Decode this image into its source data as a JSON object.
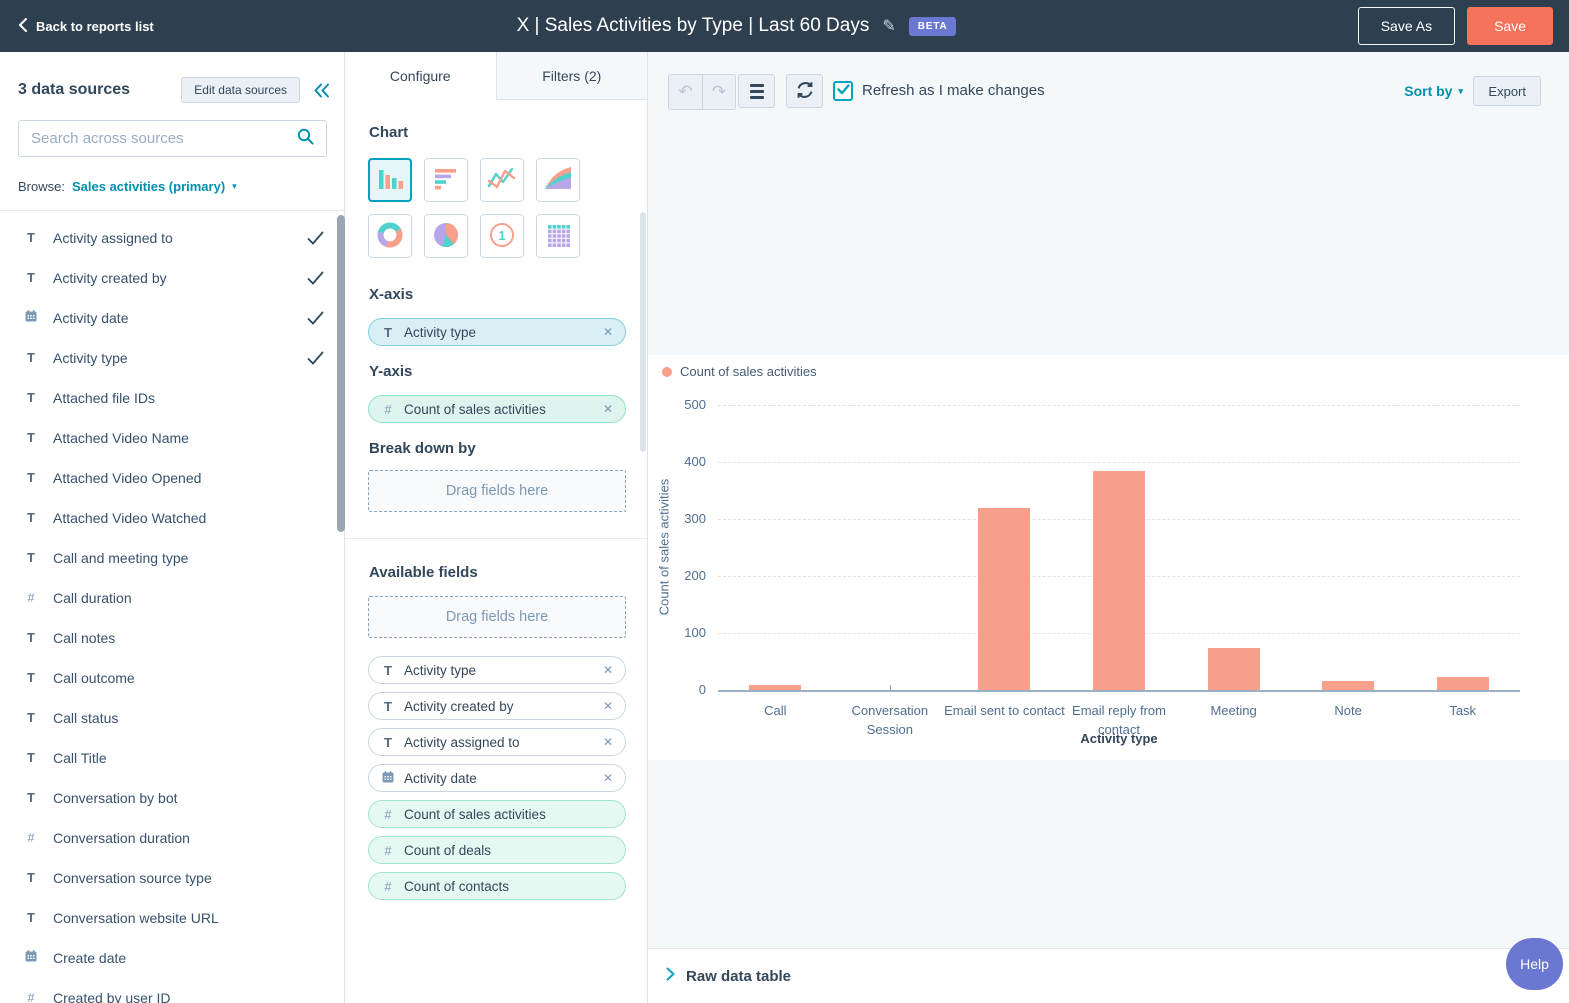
{
  "top_nav": {
    "back_label": "Back to reports list",
    "title": "X | Sales Activities by Type | Last 60 Days",
    "beta_badge": "BETA",
    "save_as_label": "Save As",
    "save_label": "Save"
  },
  "sidebar": {
    "header": "3 data sources",
    "edit_button": "Edit data sources",
    "search_placeholder": "Search across sources",
    "browse_label": "Browse:",
    "browse_value": "Sales activities (primary)",
    "fields": [
      {
        "name": "Activity assigned to",
        "type": "text",
        "checked": true
      },
      {
        "name": "Activity created by",
        "type": "text",
        "checked": true
      },
      {
        "name": "Activity date",
        "type": "date",
        "checked": true
      },
      {
        "name": "Activity type",
        "type": "text",
        "checked": true
      },
      {
        "name": "Attached file IDs",
        "type": "text",
        "checked": false
      },
      {
        "name": "Attached Video Name",
        "type": "text",
        "checked": false
      },
      {
        "name": "Attached Video Opened",
        "type": "text",
        "checked": false
      },
      {
        "name": "Attached Video Watched",
        "type": "text",
        "checked": false
      },
      {
        "name": "Call and meeting type",
        "type": "text",
        "checked": false
      },
      {
        "name": "Call duration",
        "type": "number",
        "checked": false
      },
      {
        "name": "Call notes",
        "type": "text",
        "checked": false
      },
      {
        "name": "Call outcome",
        "type": "text",
        "checked": false
      },
      {
        "name": "Call status",
        "type": "text",
        "checked": false
      },
      {
        "name": "Call Title",
        "type": "text",
        "checked": false
      },
      {
        "name": "Conversation by bot",
        "type": "text",
        "checked": false
      },
      {
        "name": "Conversation duration",
        "type": "number",
        "checked": false
      },
      {
        "name": "Conversation source type",
        "type": "text",
        "checked": false
      },
      {
        "name": "Conversation website URL",
        "type": "text",
        "checked": false
      },
      {
        "name": "Create date",
        "type": "date",
        "checked": false
      },
      {
        "name": "Created by user ID",
        "type": "number",
        "checked": false
      }
    ]
  },
  "config_panel": {
    "tabs": [
      {
        "label": "Configure",
        "active": true
      },
      {
        "label": "Filters (2)",
        "active": false
      }
    ],
    "chart_section_label": "Chart",
    "chart_types": [
      {
        "name": "column",
        "selected": true
      },
      {
        "name": "horizontal-bar",
        "selected": false
      },
      {
        "name": "line",
        "selected": false
      },
      {
        "name": "area",
        "selected": false
      },
      {
        "name": "donut",
        "selected": false
      },
      {
        "name": "pie",
        "selected": false
      },
      {
        "name": "summary",
        "selected": false
      },
      {
        "name": "table",
        "selected": false
      }
    ],
    "x_axis_label": "X-axis",
    "x_axis_pill": {
      "label": "Activity type",
      "type": "text"
    },
    "y_axis_label": "Y-axis",
    "y_axis_pill": {
      "label": "Count of sales activities",
      "type": "number"
    },
    "breakdown_label": "Break down by",
    "drag_placeholder": "Drag fields here",
    "available_fields_label": "Available fields",
    "available_pills": [
      {
        "label": "Activity type",
        "type": "text",
        "removable": true,
        "variant": "dimension"
      },
      {
        "label": "Activity created by",
        "type": "text",
        "removable": true,
        "variant": "dimension"
      },
      {
        "label": "Activity assigned to",
        "type": "text",
        "removable": true,
        "variant": "dimension"
      },
      {
        "label": "Activity date",
        "type": "date",
        "removable": true,
        "variant": "dimension"
      },
      {
        "label": "Count of sales activities",
        "type": "number",
        "removable": false,
        "variant": "measure"
      },
      {
        "label": "Count of deals",
        "type": "number",
        "removable": false,
        "variant": "measure"
      },
      {
        "label": "Count of contacts",
        "type": "number",
        "removable": false,
        "variant": "measure"
      }
    ]
  },
  "chart_toolbar": {
    "refresh_checkbox_label": "Refresh as I make changes",
    "refresh_checked": true,
    "sort_by_label": "Sort by",
    "export_label": "Export"
  },
  "chart_data": {
    "type": "bar",
    "title": "",
    "categories": [
      "Call",
      "Conversation Session",
      "Email sent to contact",
      "Email reply from contact",
      "Meeting",
      "Note",
      "Task"
    ],
    "tick_labels": [
      "Call",
      "Conversation\nSession",
      "Email sent to contact",
      "Email reply from\ncontact",
      "Meeting",
      "Note",
      "Task"
    ],
    "series": [
      {
        "name": "Count of sales activities",
        "values": [
          9,
          0,
          320,
          385,
          74,
          16,
          23
        ]
      }
    ],
    "xlabel": "Activity type",
    "ylabel": "Count of sales activities",
    "ylim": [
      0,
      500
    ],
    "yticks": [
      0,
      100,
      200,
      300,
      400,
      500
    ],
    "grid": "horizontal-dashed",
    "legend_position": "top-left",
    "bar_color": "#f9a08d"
  },
  "bottom_bar": {
    "raw_data_label": "Raw data table",
    "help_label": "Help"
  }
}
